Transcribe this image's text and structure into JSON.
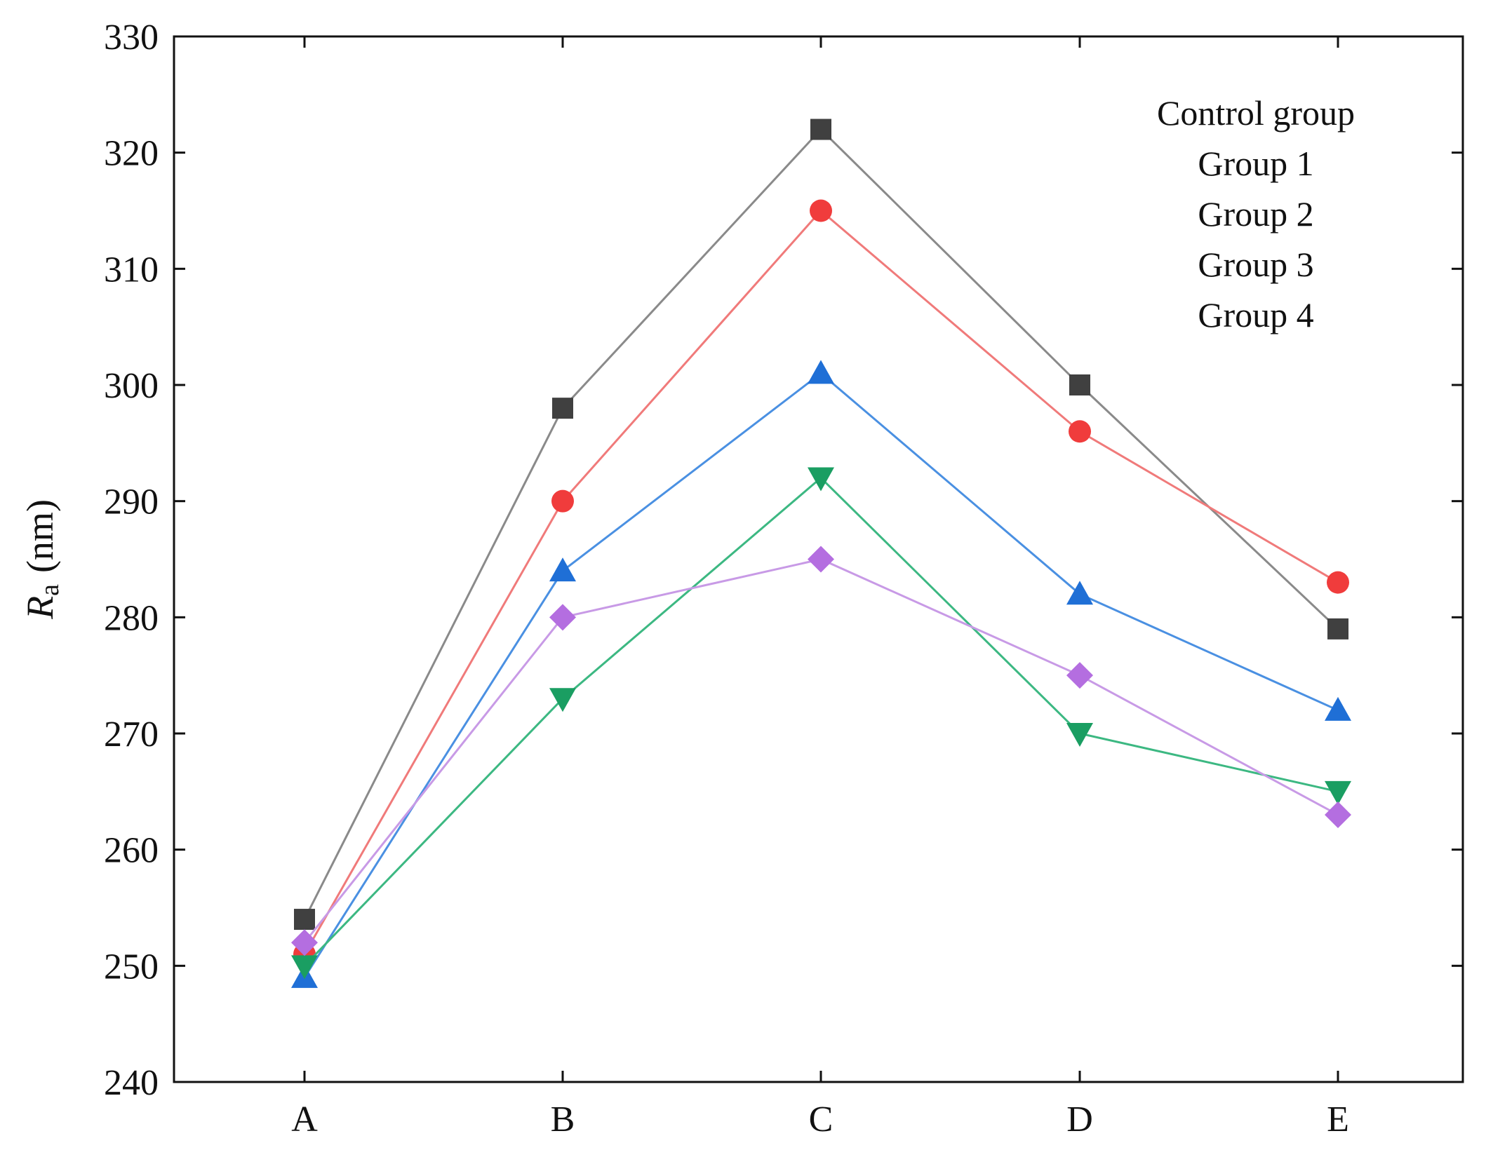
{
  "chart_data": {
    "type": "line",
    "title": "",
    "xlabel": "",
    "ylabel": {
      "symbol": "R",
      "subscript": "a",
      "unit": "(nm)"
    },
    "categories": [
      "A",
      "B",
      "C",
      "D",
      "E"
    ],
    "ylim": [
      240,
      330
    ],
    "yticks": [
      240,
      250,
      260,
      270,
      280,
      290,
      300,
      310,
      320,
      330
    ],
    "grid": false,
    "legend_position": "top-right",
    "series": [
      {
        "name": "Control group",
        "marker": "square",
        "color": "#404040",
        "line_color": "#8a8a8a",
        "values": [
          254,
          298,
          322,
          300,
          279
        ]
      },
      {
        "name": "Group 1",
        "marker": "circle",
        "color": "#f03c3c",
        "line_color": "#f07a7a",
        "values": [
          251,
          290,
          315,
          296,
          283
        ]
      },
      {
        "name": "Group 2",
        "marker": "triangle-up",
        "color": "#1f6fd6",
        "line_color": "#4a90e2",
        "values": [
          249,
          284,
          301,
          282,
          272
        ]
      },
      {
        "name": "Group 3",
        "marker": "triangle-down",
        "color": "#1a9e62",
        "line_color": "#3cb882",
        "values": [
          250,
          273,
          292,
          270,
          265
        ]
      },
      {
        "name": "Group 4",
        "marker": "diamond",
        "color": "#b46ee0",
        "line_color": "#c89ae6",
        "values": [
          252,
          280,
          285,
          275,
          263
        ]
      }
    ]
  }
}
